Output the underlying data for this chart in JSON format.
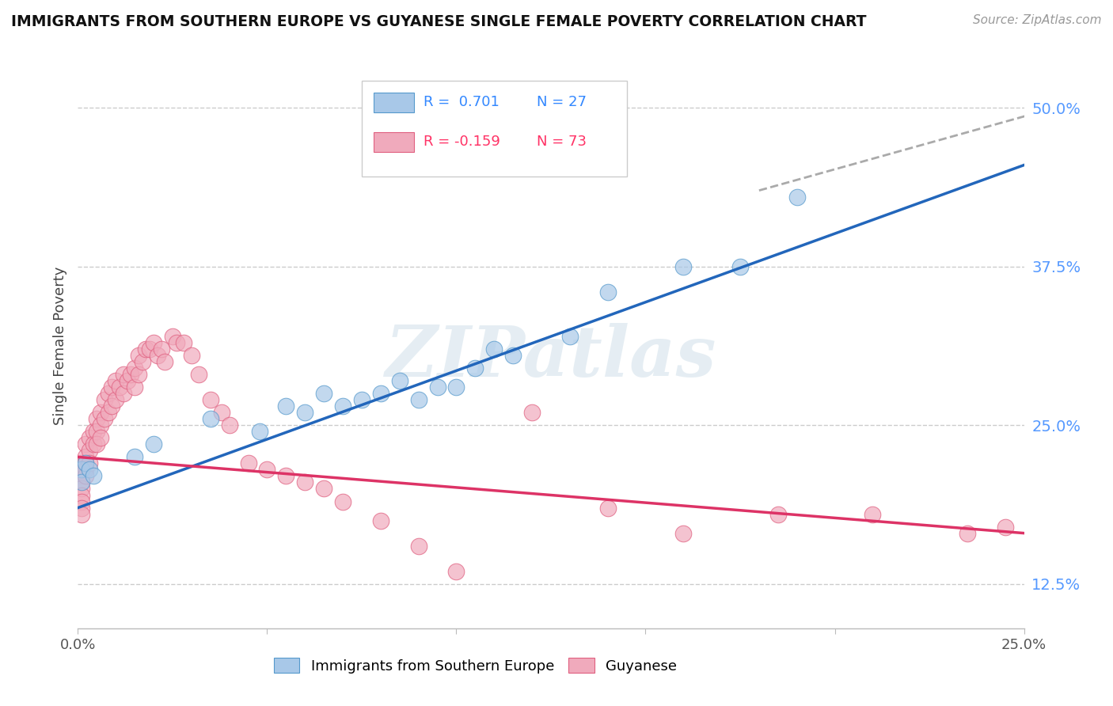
{
  "title": "IMMIGRANTS FROM SOUTHERN EUROPE VS GUYANESE SINGLE FEMALE POVERTY CORRELATION CHART",
  "source": "Source: ZipAtlas.com",
  "ylabel": "Single Female Poverty",
  "right_ytick_vals": [
    0.125,
    0.25,
    0.375,
    0.5
  ],
  "right_ytick_labels": [
    "12.5%",
    "25.0%",
    "37.5%",
    "50.0%"
  ],
  "legend_r1": "R =  0.701",
  "legend_n1": "N = 27",
  "legend_r2": "R = -0.159",
  "legend_n2": "N = 73",
  "blue_fill": "#a8c8e8",
  "blue_edge": "#5599cc",
  "pink_fill": "#f0aabc",
  "pink_edge": "#e06080",
  "blue_line_color": "#2266bb",
  "pink_line_color": "#dd3366",
  "legend_r_blue": "#3388ff",
  "legend_r_pink": "#ff3366",
  "watermark": "ZIPatlas",
  "blue_points_x": [
    0.001,
    0.001,
    0.002,
    0.003,
    0.004,
    0.015,
    0.02,
    0.035,
    0.048,
    0.055,
    0.06,
    0.065,
    0.07,
    0.075,
    0.08,
    0.085,
    0.09,
    0.095,
    0.1,
    0.105,
    0.11,
    0.115,
    0.13,
    0.14,
    0.16,
    0.175,
    0.19
  ],
  "blue_points_y": [
    0.215,
    0.205,
    0.22,
    0.215,
    0.21,
    0.225,
    0.235,
    0.255,
    0.245,
    0.265,
    0.26,
    0.275,
    0.265,
    0.27,
    0.275,
    0.285,
    0.27,
    0.28,
    0.28,
    0.295,
    0.31,
    0.305,
    0.32,
    0.355,
    0.375,
    0.375,
    0.43
  ],
  "pink_points_x": [
    0.001,
    0.001,
    0.001,
    0.001,
    0.001,
    0.001,
    0.001,
    0.001,
    0.001,
    0.002,
    0.002,
    0.002,
    0.002,
    0.002,
    0.003,
    0.003,
    0.003,
    0.004,
    0.004,
    0.005,
    0.005,
    0.005,
    0.006,
    0.006,
    0.006,
    0.007,
    0.007,
    0.008,
    0.008,
    0.009,
    0.009,
    0.01,
    0.01,
    0.011,
    0.012,
    0.012,
    0.013,
    0.014,
    0.015,
    0.015,
    0.016,
    0.016,
    0.017,
    0.018,
    0.019,
    0.02,
    0.021,
    0.022,
    0.023,
    0.025,
    0.026,
    0.028,
    0.03,
    0.032,
    0.035,
    0.038,
    0.04,
    0.045,
    0.05,
    0.055,
    0.06,
    0.065,
    0.07,
    0.08,
    0.09,
    0.1,
    0.12,
    0.14,
    0.16,
    0.185,
    0.21,
    0.235,
    0.245
  ],
  "pink_points_y": [
    0.22,
    0.215,
    0.21,
    0.205,
    0.2,
    0.195,
    0.19,
    0.185,
    0.18,
    0.235,
    0.225,
    0.22,
    0.215,
    0.21,
    0.24,
    0.23,
    0.22,
    0.245,
    0.235,
    0.255,
    0.245,
    0.235,
    0.26,
    0.25,
    0.24,
    0.27,
    0.255,
    0.275,
    0.26,
    0.28,
    0.265,
    0.285,
    0.27,
    0.28,
    0.29,
    0.275,
    0.285,
    0.29,
    0.295,
    0.28,
    0.305,
    0.29,
    0.3,
    0.31,
    0.31,
    0.315,
    0.305,
    0.31,
    0.3,
    0.32,
    0.315,
    0.315,
    0.305,
    0.29,
    0.27,
    0.26,
    0.25,
    0.22,
    0.215,
    0.21,
    0.205,
    0.2,
    0.19,
    0.175,
    0.155,
    0.135,
    0.26,
    0.185,
    0.165,
    0.18,
    0.18,
    0.165,
    0.17
  ],
  "xlim": [
    0.0,
    0.25
  ],
  "ylim": [
    0.09,
    0.535
  ],
  "blue_trend": [
    0.0,
    0.25,
    0.185,
    0.455
  ],
  "pink_trend": [
    0.0,
    0.25,
    0.225,
    0.165
  ],
  "blue_dash_trend": [
    0.18,
    0.3,
    0.435,
    0.535
  ],
  "xtick_positions": [
    0.0,
    0.05,
    0.1,
    0.15,
    0.2,
    0.25
  ],
  "xtick_labels": [
    "0.0%",
    "",
    "",
    "",
    "",
    "25.0%"
  ]
}
